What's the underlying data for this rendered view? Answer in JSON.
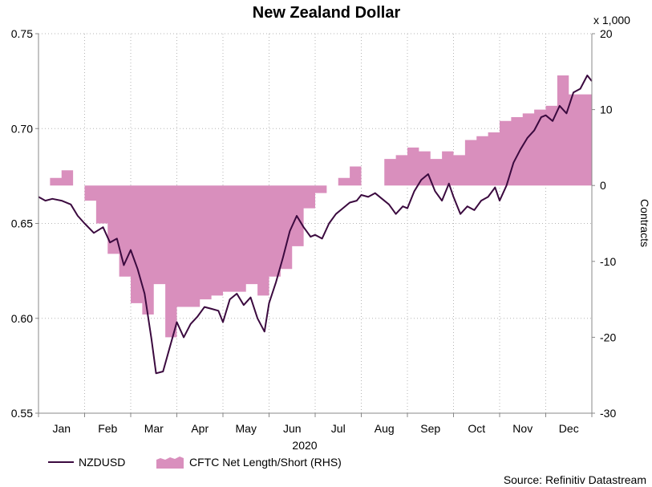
{
  "chart_data": {
    "type": "line",
    "title": "New Zealand Dollar",
    "xlabel": "2020",
    "ylabel_right": "Contracts",
    "right_scale_note": "x 1,000",
    "source": "Source: Refinitiv Datastream",
    "months": [
      "Jan",
      "Feb",
      "Mar",
      "Apr",
      "May",
      "Jun",
      "Jul",
      "Aug",
      "Sep",
      "Oct",
      "Nov",
      "Dec"
    ],
    "ylim_left": [
      0.55,
      0.75
    ],
    "yticks_left": [
      "0.55",
      "0.60",
      "0.65",
      "0.70",
      "0.75"
    ],
    "ylim_right": [
      -30,
      20
    ],
    "yticks_right": [
      "-30",
      "-20",
      "-10",
      "0",
      "10",
      "20"
    ],
    "grid": true,
    "legend_position": "bottom-left",
    "colors": {
      "nzdusd": "#3b0a3f",
      "cftc": "#d98fbd"
    },
    "series": [
      {
        "name": "NZDUSD",
        "axis": "left",
        "style": "line",
        "x": [
          0.0,
          0.15,
          0.3,
          0.5,
          0.7,
          0.85,
          1.0,
          1.2,
          1.4,
          1.55,
          1.7,
          1.85,
          2.0,
          2.15,
          2.3,
          2.45,
          2.55,
          2.7,
          2.85,
          3.0,
          3.15,
          3.3,
          3.45,
          3.6,
          3.75,
          3.9,
          4.0,
          4.15,
          4.3,
          4.45,
          4.6,
          4.75,
          4.9,
          5.0,
          5.15,
          5.3,
          5.45,
          5.6,
          5.75,
          5.9,
          6.0,
          6.15,
          6.3,
          6.45,
          6.6,
          6.75,
          6.9,
          7.0,
          7.15,
          7.3,
          7.45,
          7.6,
          7.75,
          7.9,
          8.0,
          8.15,
          8.3,
          8.45,
          8.6,
          8.75,
          8.9,
          9.0,
          9.15,
          9.3,
          9.45,
          9.6,
          9.75,
          9.9,
          10.0,
          10.15,
          10.3,
          10.45,
          10.6,
          10.75,
          10.9,
          11.0,
          11.15,
          11.3,
          11.45,
          11.6,
          11.75,
          11.9,
          12.0
        ],
        "values": [
          0.664,
          0.662,
          0.663,
          0.662,
          0.66,
          0.654,
          0.65,
          0.645,
          0.648,
          0.64,
          0.642,
          0.628,
          0.636,
          0.626,
          0.613,
          0.589,
          0.571,
          0.572,
          0.585,
          0.598,
          0.59,
          0.597,
          0.601,
          0.606,
          0.605,
          0.604,
          0.598,
          0.61,
          0.613,
          0.607,
          0.611,
          0.6,
          0.593,
          0.608,
          0.619,
          0.632,
          0.646,
          0.654,
          0.648,
          0.643,
          0.644,
          0.642,
          0.65,
          0.655,
          0.658,
          0.661,
          0.662,
          0.665,
          0.664,
          0.666,
          0.663,
          0.66,
          0.655,
          0.659,
          0.658,
          0.667,
          0.673,
          0.676,
          0.667,
          0.662,
          0.671,
          0.664,
          0.655,
          0.659,
          0.657,
          0.662,
          0.664,
          0.669,
          0.662,
          0.67,
          0.682,
          0.689,
          0.695,
          0.699,
          0.706,
          0.707,
          0.704,
          0.712,
          0.708,
          0.719,
          0.721,
          0.728,
          0.725
        ]
      },
      {
        "name": "CFTC Net Length/Short (RHS)",
        "axis": "right",
        "style": "step-area",
        "x": [
          0.0,
          0.25,
          0.5,
          0.75,
          1.0,
          1.25,
          1.5,
          1.75,
          2.0,
          2.25,
          2.5,
          2.75,
          3.0,
          3.25,
          3.5,
          3.75,
          4.0,
          4.25,
          4.5,
          4.75,
          5.0,
          5.25,
          5.5,
          5.75,
          6.0,
          6.25,
          6.5,
          6.75,
          7.0,
          7.25,
          7.5,
          7.75,
          8.0,
          8.25,
          8.5,
          8.75,
          9.0,
          9.25,
          9.5,
          9.75,
          10.0,
          10.25,
          10.5,
          10.75,
          11.0,
          11.25,
          11.5,
          11.75,
          12.0
        ],
        "values": [
          0.0,
          1.0,
          2.0,
          0.0,
          -2.0,
          -5.0,
          -9.0,
          -12.0,
          -15.5,
          -17.0,
          -13.0,
          -20.0,
          -16.0,
          -16.0,
          -15.0,
          -14.5,
          -14.0,
          -14.0,
          -13.0,
          -14.5,
          -12.0,
          -11.0,
          -8.0,
          -3.0,
          -1.0,
          0.0,
          1.0,
          2.5,
          0.0,
          0.0,
          3.5,
          4.0,
          5.0,
          4.5,
          3.5,
          4.5,
          4.0,
          6.0,
          6.5,
          7.0,
          8.5,
          9.0,
          9.5,
          10.0,
          10.5,
          14.5,
          12.0,
          12.0,
          12.0
        ]
      }
    ]
  }
}
